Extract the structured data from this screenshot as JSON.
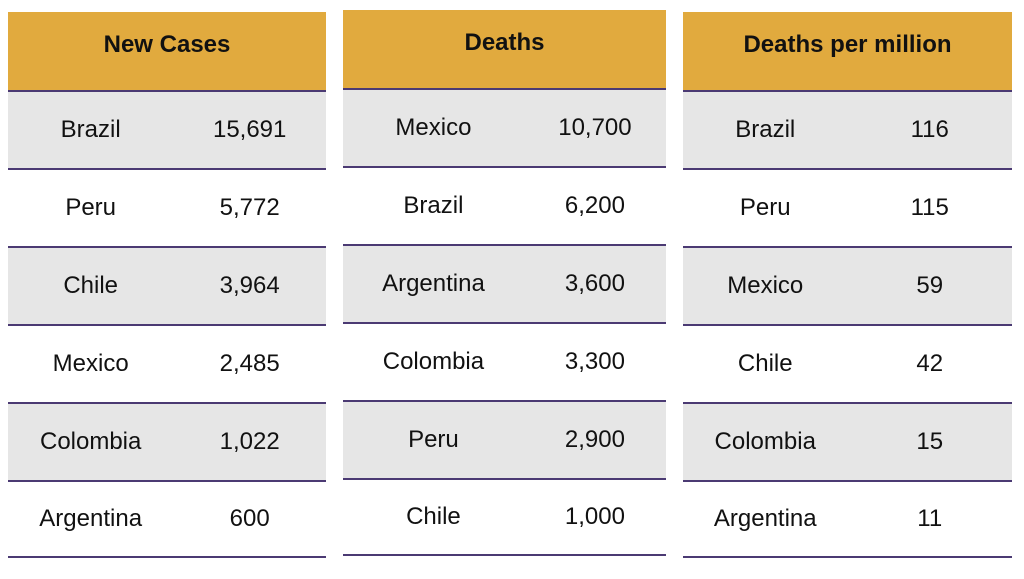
{
  "tables": [
    {
      "title": "New Cases",
      "rows": [
        {
          "country": "Brazil",
          "value": "15,691"
        },
        {
          "country": "Peru",
          "value": "5,772"
        },
        {
          "country": "Chile",
          "value": "3,964"
        },
        {
          "country": "Mexico",
          "value": "2,485"
        },
        {
          "country": "Colombia",
          "value": "1,022"
        },
        {
          "country": "Argentina",
          "value": "600"
        }
      ]
    },
    {
      "title": "Deaths",
      "rows": [
        {
          "country": "Mexico",
          "value": "10,700"
        },
        {
          "country": "Brazil",
          "value": "6,200"
        },
        {
          "country": "Argentina",
          "value": "3,600"
        },
        {
          "country": "Colombia",
          "value": "3,300"
        },
        {
          "country": "Peru",
          "value": "2,900"
        },
        {
          "country": "Chile",
          "value": "1,000"
        }
      ]
    },
    {
      "title": "Deaths per million",
      "rows": [
        {
          "country": "Brazil",
          "value": "116"
        },
        {
          "country": "Peru",
          "value": "115"
        },
        {
          "country": "Mexico",
          "value": "59"
        },
        {
          "country": "Chile",
          "value": "42"
        },
        {
          "country": "Colombia",
          "value": "15"
        },
        {
          "country": "Argentina",
          "value": "11"
        }
      ]
    }
  ],
  "colors": {
    "header": "#e1aa3e",
    "shaded_row": "#e6e6e6",
    "divider": "#4b3a73"
  }
}
